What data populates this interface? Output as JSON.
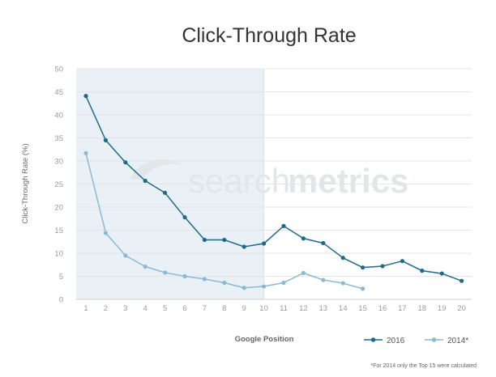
{
  "chart_data": {
    "type": "line",
    "title": "Click-Through Rate",
    "xlabel": "Google Position",
    "ylabel": "Click-Through Rate (%)",
    "ylim": [
      0,
      50
    ],
    "yticks": [
      0,
      5,
      10,
      15,
      20,
      25,
      30,
      35,
      40,
      45,
      50
    ],
    "x": [
      1,
      2,
      3,
      4,
      5,
      6,
      7,
      8,
      9,
      10,
      11,
      12,
      13,
      14,
      15,
      16,
      17,
      18,
      19,
      20
    ],
    "highlight_range": [
      1,
      10
    ],
    "grid": true,
    "legend_position": "bottom-right",
    "series": [
      {
        "name": "2016",
        "color": "#1f6a8c",
        "x": [
          1,
          2,
          3,
          4,
          5,
          6,
          7,
          8,
          9,
          10,
          11,
          12,
          13,
          14,
          15,
          16,
          17,
          18,
          19,
          20
        ],
        "values": [
          44.1,
          34.5,
          29.7,
          25.7,
          23.1,
          17.8,
          12.9,
          12.9,
          11.4,
          12.1,
          15.9,
          13.2,
          12.2,
          9.0,
          6.9,
          7.2,
          8.3,
          6.2,
          5.6,
          4.0
        ]
      },
      {
        "name": "2014*",
        "color": "#8ab9d6",
        "x": [
          1,
          2,
          3,
          4,
          5,
          6,
          7,
          8,
          9,
          10,
          11,
          12,
          13,
          14,
          15
        ],
        "values": [
          31.7,
          14.4,
          9.5,
          7.1,
          5.8,
          5.0,
          4.4,
          3.6,
          2.5,
          2.8,
          3.6,
          5.7,
          4.2,
          3.5,
          2.3
        ]
      }
    ],
    "watermark": {
      "light": "search",
      "bold": "metrics"
    },
    "footnote": "*For 2014 only the Top 15 were calculated"
  }
}
